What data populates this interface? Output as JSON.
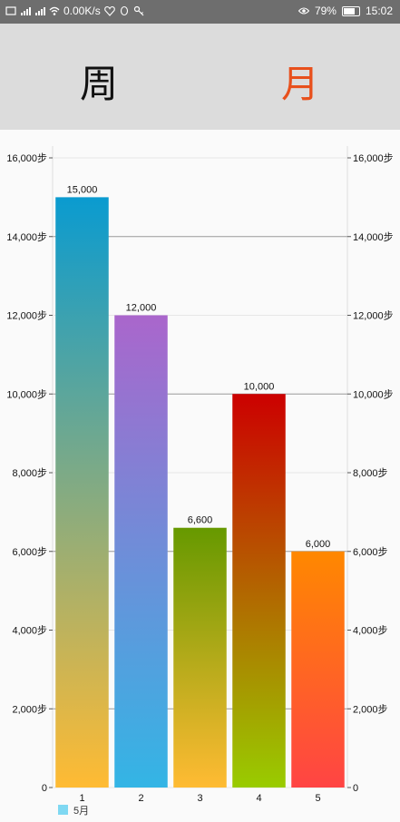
{
  "status_bar": {
    "network_speed": "0.00K/s",
    "battery": "79%",
    "time": "15:02"
  },
  "tabs": {
    "week": "周",
    "month": "月"
  },
  "colors": {
    "active_tab": "#e8501c",
    "header_bg": "#dcdcdc"
  },
  "chart_data": {
    "type": "bar",
    "categories": [
      "1",
      "2",
      "3",
      "4",
      "5"
    ],
    "values": [
      15000,
      12000,
      6600,
      10000,
      6000
    ],
    "value_labels": [
      "15,000",
      "12,000",
      "6,600",
      "10,000",
      "6,000"
    ],
    "y_ticks": [
      "0",
      "2,000步",
      "4,000步",
      "6,000步",
      "8,000步",
      "10,000步",
      "12,000步",
      "14,000步",
      "16,000步"
    ],
    "ylim": [
      0,
      16000
    ],
    "legend": [
      "5月"
    ],
    "legend_color": "#7fd8f2",
    "bar_gradients": [
      [
        "#0a9bd0",
        "#ffbb33"
      ],
      [
        "#aa66cc",
        "#33b5e5"
      ],
      [
        "#669900",
        "#ffbb33"
      ],
      [
        "#cc0000",
        "#99cc00"
      ],
      [
        "#ff8800",
        "#ff4444"
      ]
    ],
    "grid": true
  }
}
